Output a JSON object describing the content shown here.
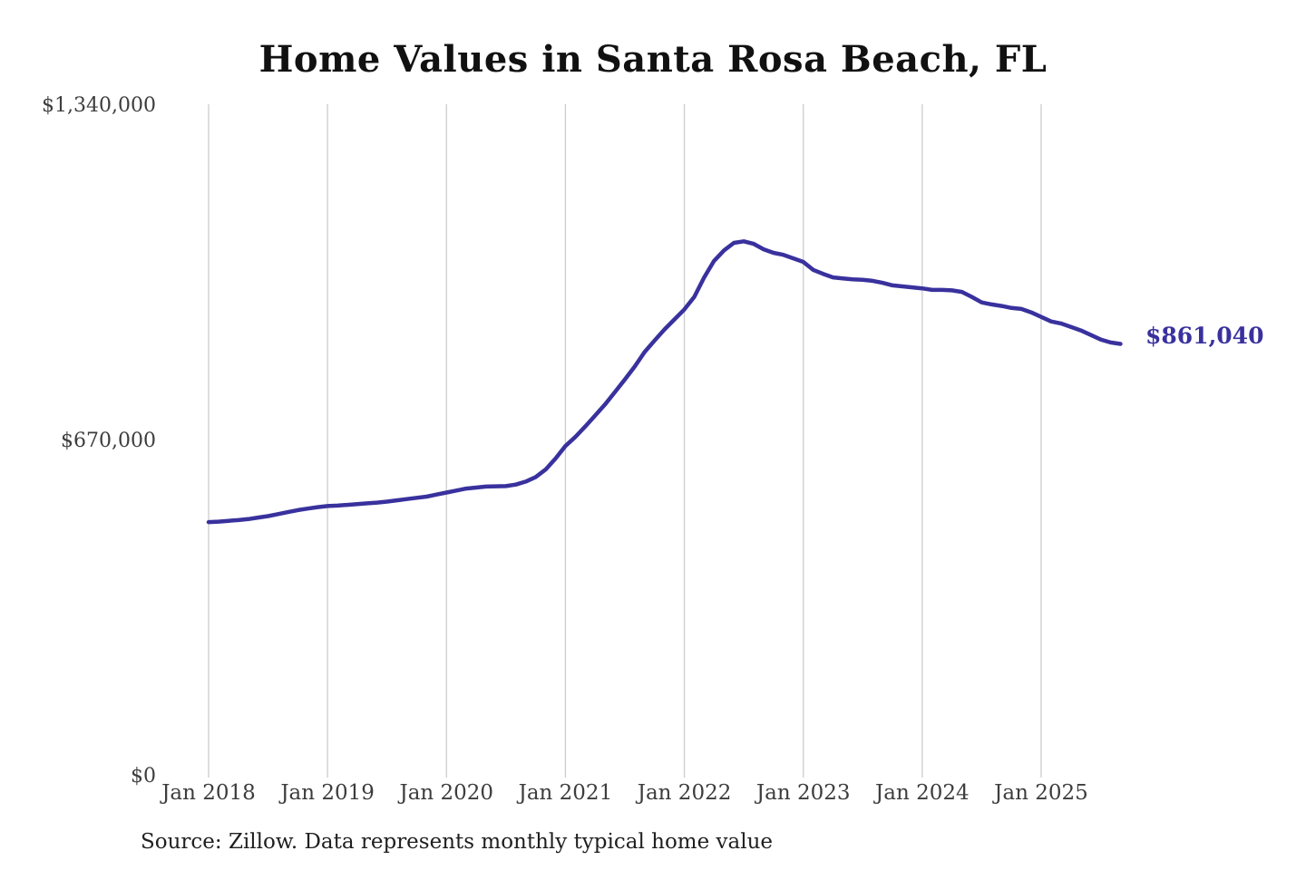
{
  "page": {
    "title": "Home Values in Santa Rosa Beach, FL",
    "source_note": "Source: Zillow. Data represents monthly typical home value"
  },
  "chart_data": {
    "type": "line",
    "title": "Home Values in Santa Rosa Beach, FL",
    "series_name": "Monthly typical home value",
    "x_start": "Jan 2018",
    "interval": "monthly",
    "x_tick_labels": [
      "Jan 2018",
      "Jan 2019",
      "Jan 2020",
      "Jan 2021",
      "Jan 2022",
      "Jan 2023",
      "Jan 2024",
      "Jan 2025"
    ],
    "y_tick_labels": [
      "$0",
      "$670,000",
      "$1,340,000"
    ],
    "y_tick_values": [
      0,
      670000,
      1340000
    ],
    "ylim": [
      0,
      1340000
    ],
    "grid": "vertical-only",
    "legend": "none",
    "line_color": "#39319d",
    "gridline_color": "#cccccc",
    "end_label": "$861,040",
    "end_value": 861040,
    "values": [
      505000,
      506000,
      507500,
      509000,
      511000,
      514000,
      517000,
      521000,
      525000,
      529000,
      532000,
      535000,
      537000,
      538000,
      539500,
      541000,
      542500,
      544000,
      546000,
      548500,
      551000,
      553500,
      556000,
      560000,
      564000,
      568000,
      572000,
      574000,
      576000,
      576500,
      577000,
      580000,
      586000,
      595000,
      610000,
      632000,
      657000,
      675000,
      696000,
      718000,
      740000,
      765000,
      790000,
      816000,
      845000,
      868000,
      890000,
      910000,
      930000,
      955000,
      994000,
      1027000,
      1048000,
      1063000,
      1066000,
      1061000,
      1050000,
      1043000,
      1039000,
      1032000,
      1025000,
      1009000,
      1001000,
      994000,
      992000,
      990000,
      989000,
      987000,
      983000,
      978000,
      976000,
      974000,
      972000,
      969000,
      969000,
      968000,
      965000,
      955000,
      944000,
      940000,
      937000,
      933000,
      931000,
      924000,
      915000,
      906000,
      902000,
      895000,
      888000,
      879000,
      870000,
      864000,
      861040
    ],
    "source": "Source: Zillow. Data represents monthly typical home value"
  }
}
